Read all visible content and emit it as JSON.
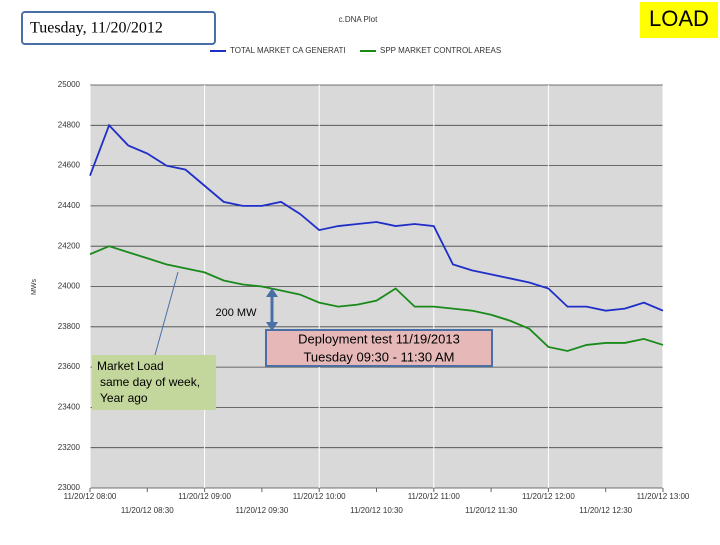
{
  "chart_data": {
    "type": "line",
    "title": "c.DNA Plot",
    "header": "Tuesday, 11/20/2012",
    "badge": "LOAD",
    "y_label": "MWs",
    "x": [
      "08:00",
      "08:10",
      "08:20",
      "08:30",
      "08:40",
      "08:50",
      "09:00",
      "09:10",
      "09:20",
      "09:30",
      "09:40",
      "09:50",
      "10:00",
      "10:10",
      "10:20",
      "10:30",
      "10:40",
      "10:50",
      "11:00",
      "11:10",
      "11:20",
      "11:30",
      "11:40",
      "11:50",
      "12:00",
      "12:10",
      "12:20",
      "12:30",
      "12:40",
      "12:50",
      "13:00"
    ],
    "series": [
      {
        "name": "TOTAL MARKET CA GENERATI",
        "color": "#1f2fc8",
        "values": [
          24550,
          24800,
          24700,
          24660,
          24600,
          24580,
          24500,
          24420,
          24400,
          24400,
          24420,
          24360,
          24280,
          24300,
          24310,
          24320,
          24300,
          24310,
          24300,
          24110,
          24080,
          24060,
          24040,
          24020,
          23990,
          23900,
          23900,
          23880,
          23890,
          23920,
          23880
        ]
      },
      {
        "name": "SPP MARKET CONTROL AREAS",
        "color": "#1a8a1a",
        "values": [
          24160,
          24200,
          24170,
          24140,
          24110,
          24090,
          24070,
          24030,
          24010,
          24000,
          23980,
          23960,
          23920,
          23900,
          23910,
          23930,
          23990,
          23900,
          23900,
          23890,
          23880,
          23860,
          23830,
          23790,
          23700,
          23680,
          23710,
          23720,
          23720,
          23740,
          23710
        ]
      }
    ],
    "xlim": [
      "08:00",
      "13:00"
    ],
    "xticks": [
      {
        "value": "08:00",
        "label": "11/20/12 08:00"
      },
      {
        "value": "08:30",
        "label": "11/20/12 08:30"
      },
      {
        "value": "09:00",
        "label": "11/20/12 09:00"
      },
      {
        "value": "09:30",
        "label": "11/20/12 09:30"
      },
      {
        "value": "10:00",
        "label": "11/20/12 10:00"
      },
      {
        "value": "10:30",
        "label": "11/20/12 10:30"
      },
      {
        "value": "11:00",
        "label": "11/20/12 11:00"
      },
      {
        "value": "11:30",
        "label": "11/20/12 11:30"
      },
      {
        "value": "12:00",
        "label": "11/20/12 12:00"
      },
      {
        "value": "12:30",
        "label": "11/20/12 12:30"
      },
      {
        "value": "13:00",
        "label": "11/20/12 13:00"
      }
    ],
    "ylim": [
      23000,
      25000
    ],
    "yticks": [
      23000,
      23200,
      23400,
      23600,
      23800,
      24000,
      24200,
      24400,
      24600,
      24800,
      25000
    ],
    "grid": true,
    "annotations": {
      "difference": "200 MW",
      "deployment": [
        "Deployment test   11/19/2013",
        "Tuesday   09:30  -  11:30  AM"
      ],
      "market_load": [
        "Market Load",
        "same day  of week,",
        "Year ago"
      ]
    }
  }
}
